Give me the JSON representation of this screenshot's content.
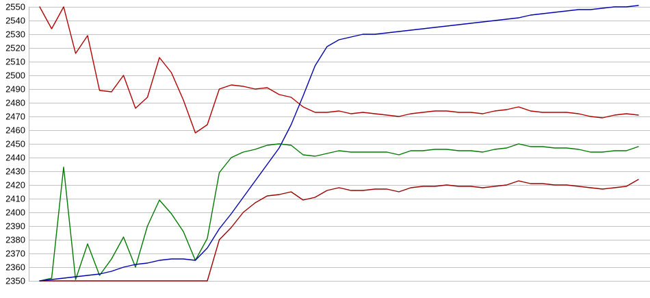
{
  "chart_data": {
    "type": "line",
    "title": "",
    "xlabel": "",
    "ylabel": "",
    "x_axis": {
      "tick_labels_visible": false,
      "point_count": 51
    },
    "y_axis": {
      "min": 2350,
      "max": 2550,
      "tick_step": 10,
      "ticks": [
        2550,
        2540,
        2530,
        2520,
        2510,
        2500,
        2490,
        2480,
        2470,
        2460,
        2450,
        2440,
        2430,
        2420,
        2410,
        2400,
        2390,
        2380,
        2370,
        2360,
        2350
      ]
    },
    "grid": true,
    "legend": "none",
    "colors": {
      "gridline": "#c3c3c3",
      "axis_line": "#b5b5b5",
      "background": "#ffffff",
      "label_text": "#000000"
    },
    "series": [
      {
        "name": "maroon-lower-line",
        "color": "#990000",
        "values": [
          2350,
          2350,
          2350,
          2350,
          2350,
          2350,
          2350,
          2350,
          2350,
          2350,
          2350,
          2350,
          2350,
          2350,
          2350,
          2380,
          2389,
          2400,
          2407,
          2412,
          2413,
          2415,
          2409,
          2411,
          2416,
          2418,
          2416,
          2416,
          2417,
          2417,
          2415,
          2418,
          2419,
          2419,
          2420,
          2419,
          2419,
          2418,
          2419,
          2420,
          2423,
          2421,
          2421,
          2420,
          2420,
          2419,
          2418,
          2417,
          2418,
          2419,
          2424
        ]
      },
      {
        "name": "green-middle-line",
        "color": "#007a00",
        "values": [
          2350,
          2352,
          2433,
          2351,
          2377,
          2354,
          2366,
          2382,
          2360,
          2390,
          2409,
          2399,
          2386,
          2365,
          2381,
          2429,
          2440,
          2444,
          2446,
          2449,
          2450,
          2449,
          2442,
          2441,
          2443,
          2445,
          2444,
          2444,
          2444,
          2444,
          2442,
          2445,
          2445,
          2446,
          2446,
          2445,
          2445,
          2444,
          2446,
          2447,
          2450,
          2448,
          2448,
          2447,
          2447,
          2446,
          2444,
          2444,
          2445,
          2445,
          2448
        ]
      },
      {
        "name": "red-upper-line",
        "color": "#b00000",
        "values": [
          2550,
          2534,
          2550,
          2516,
          2529,
          2489,
          2488,
          2500,
          2476,
          2484,
          2513,
          2502,
          2482,
          2458,
          2464,
          2490,
          2493,
          2492,
          2490,
          2491,
          2486,
          2484,
          2477,
          2473,
          2473,
          2474,
          2472,
          2473,
          2472,
          2471,
          2470,
          2472,
          2473,
          2474,
          2474,
          2473,
          2473,
          2472,
          2474,
          2475,
          2477,
          2474,
          2473,
          2473,
          2473,
          2472,
          2470,
          2469,
          2471,
          2472,
          2471
        ]
      },
      {
        "name": "blue-rising-line",
        "color": "#0000b0",
        "values": [
          2350,
          2351,
          2352,
          2353,
          2354,
          2355,
          2357,
          2360,
          2362,
          2363,
          2365,
          2366,
          2366,
          2365,
          2374,
          2388,
          2399,
          2411,
          2423,
          2435,
          2447,
          2464,
          2485,
          2507,
          2521,
          2526,
          2528,
          2530,
          2530,
          2531,
          2532,
          2533,
          2534,
          2535,
          2536,
          2537,
          2538,
          2539,
          2540,
          2541,
          2542,
          2544,
          2545,
          2546,
          2547,
          2548,
          2548,
          2549,
          2550,
          2550,
          2551
        ]
      }
    ]
  }
}
